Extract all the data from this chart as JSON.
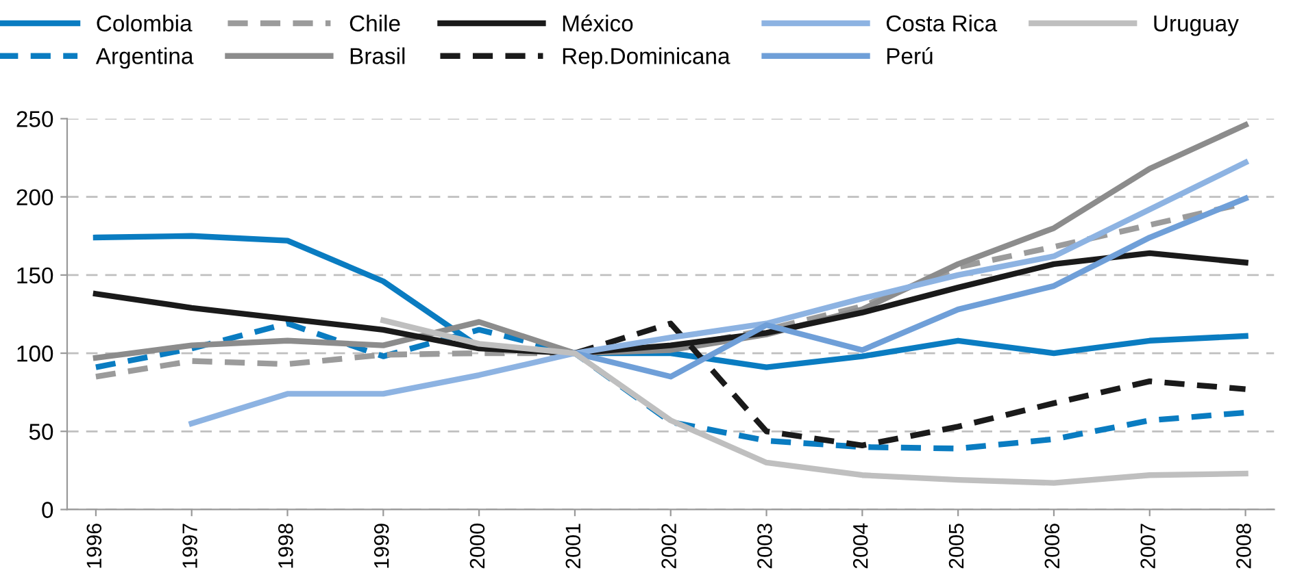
{
  "chart_data": {
    "type": "line",
    "categories": [
      "1996",
      "1997",
      "1998",
      "1999",
      "2000",
      "2001",
      "2002",
      "2003",
      "2004",
      "2005",
      "2006",
      "2007",
      "2008"
    ],
    "series": [
      {
        "name": "Colombia",
        "color": "#0a7cc1",
        "line_style": "solid",
        "values": [
          174,
          175,
          172,
          146,
          104,
          100,
          100,
          91,
          98,
          108,
          100,
          108,
          111
        ]
      },
      {
        "name": "Argentina",
        "color": "#0a7cc1",
        "line_style": "dashed",
        "values": [
          91,
          103,
          119,
          98,
          115,
          100,
          56,
          44,
          40,
          39,
          45,
          57,
          62
        ]
      },
      {
        "name": "Chile",
        "color": "#9b9b9b",
        "line_style": "dashed",
        "values": [
          85,
          95,
          93,
          99,
          100,
          100,
          103,
          115,
          130,
          155,
          168,
          182,
          196
        ]
      },
      {
        "name": "Brasil",
        "color": "#8c8c8c",
        "line_style": "solid",
        "values": [
          97,
          105,
          108,
          105,
          120,
          100,
          102,
          112,
          128,
          157,
          180,
          218,
          246
        ]
      },
      {
        "name": "México",
        "color": "#1a1a1a",
        "line_style": "solid",
        "values": [
          138,
          129,
          122,
          115,
          103,
          100,
          105,
          113,
          126,
          142,
          157,
          164,
          158
        ]
      },
      {
        "name": "Rep.Dominicana",
        "color": "#1a1a1a",
        "line_style": "dashed",
        "values": [
          null,
          null,
          null,
          null,
          null,
          100,
          119,
          50,
          41,
          53,
          68,
          82,
          77
        ]
      },
      {
        "name": "Costa Rica",
        "color": "#8db3e2",
        "line_style": "solid",
        "values": [
          null,
          55,
          74,
          74,
          86,
          100,
          110,
          119,
          135,
          150,
          162,
          192,
          222
        ]
      },
      {
        "name": "Perú",
        "color": "#6f9fd8",
        "line_style": "solid",
        "values": [
          null,
          null,
          null,
          null,
          null,
          100,
          85,
          118,
          102,
          128,
          143,
          174,
          199
        ]
      },
      {
        "name": "Uruguay",
        "color": "#bfbfbf",
        "line_style": "solid",
        "values": [
          null,
          null,
          null,
          121,
          106,
          100,
          57,
          30,
          22,
          19,
          17,
          22,
          23
        ]
      }
    ],
    "ylim": [
      0,
      250
    ],
    "yticks": [
      0,
      50,
      100,
      150,
      200,
      250
    ],
    "grid": "y",
    "legend": "top",
    "marker": "none"
  }
}
